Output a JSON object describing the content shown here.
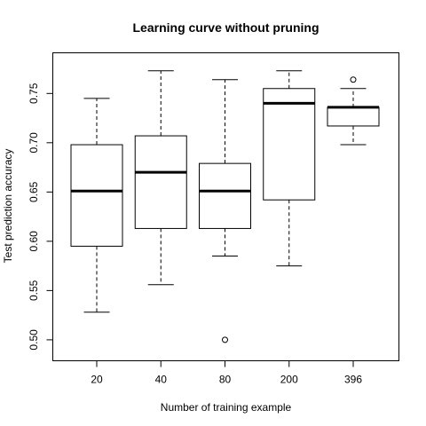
{
  "chart_data": {
    "type": "boxplot",
    "title": "Learning curve without pruning",
    "xlabel": "Number of training example",
    "ylabel": "Test prediction accuracy",
    "categories": [
      "20",
      "40",
      "80",
      "200",
      "396"
    ],
    "ylim": [
      0.49,
      0.78
    ],
    "yticks": [
      0.5,
      0.55,
      0.6,
      0.65,
      0.7,
      0.75
    ],
    "ytick_labels": [
      "0.50",
      "0.55",
      "0.60",
      "0.65",
      "0.70",
      "0.75"
    ],
    "boxes": [
      {
        "category": "20",
        "whisker_low": 0.528,
        "q1": 0.595,
        "median": 0.651,
        "q3": 0.698,
        "whisker_high": 0.745,
        "outliers": []
      },
      {
        "category": "40",
        "whisker_low": 0.556,
        "q1": 0.613,
        "median": 0.67,
        "q3": 0.707,
        "whisker_high": 0.773,
        "outliers": []
      },
      {
        "category": "80",
        "whisker_low": 0.585,
        "q1": 0.613,
        "median": 0.651,
        "q3": 0.679,
        "whisker_high": 0.764,
        "outliers": [
          0.5
        ]
      },
      {
        "category": "200",
        "whisker_low": 0.575,
        "q1": 0.642,
        "median": 0.74,
        "q3": 0.755,
        "whisker_high": 0.773,
        "outliers": []
      },
      {
        "category": "396",
        "whisker_low": 0.698,
        "q1": 0.717,
        "median": 0.736,
        "q3": 0.736,
        "whisker_high": 0.755,
        "outliers": [
          0.764
        ]
      }
    ],
    "grid": false,
    "legend": false
  }
}
